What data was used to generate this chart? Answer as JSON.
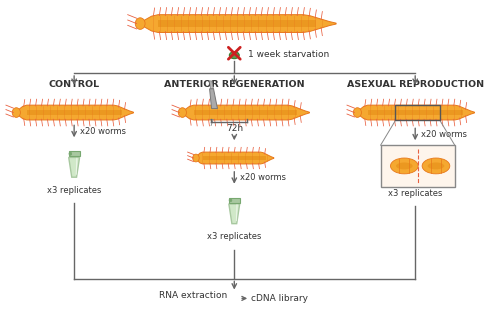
{
  "bg_color": "#ffffff",
  "worm_fill": "#F5A830",
  "worm_body_inner": "#E8921A",
  "worm_outline": "#E8781A",
  "bristle_color": "#E86040",
  "arrow_color": "#666666",
  "text_color": "#333333",
  "tube_body": "#A8C8A0",
  "tube_light": "#D0E8C8",
  "tube_cap": "#78A870",
  "header_control": "CONTROL",
  "header_regen": "ANTERIOR REGENERATION",
  "header_asexual": "ASEXUAL REPRODUCTION",
  "label_starvation": "1 week starvation",
  "label_72h": "72h",
  "label_x20": "x20 worms",
  "label_x3": "x3 replicates",
  "label_rna": "RNA extraction",
  "label_cdna": "cDNA library",
  "figsize": [
    5.0,
    3.2
  ],
  "dpi": 100
}
